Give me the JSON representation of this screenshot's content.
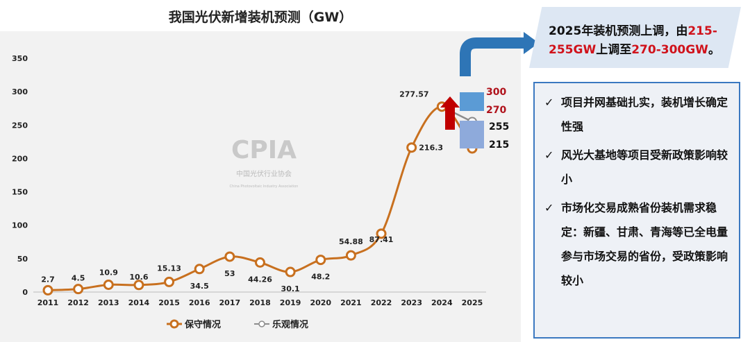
{
  "chart_data": {
    "type": "line",
    "title": "我国光伏新增装机预测（GW）",
    "categories": [
      "2011",
      "2012",
      "2013",
      "2014",
      "2015",
      "2016",
      "2017",
      "2018",
      "2019",
      "2020",
      "2021",
      "2022",
      "2023",
      "2024",
      "2025"
    ],
    "series": [
      {
        "name": "保守情况",
        "color": "#c8701f",
        "values": [
          2.7,
          4.5,
          10.9,
          10.6,
          15.13,
          34.5,
          53,
          44.26,
          30.1,
          48.2,
          54.88,
          87.41,
          216.3,
          277.57,
          215
        ]
      },
      {
        "name": "乐观情况",
        "color": "#8c8c8c",
        "values": [
          null,
          null,
          null,
          null,
          null,
          null,
          null,
          null,
          null,
          null,
          null,
          null,
          null,
          277.57,
          255
        ]
      }
    ],
    "data_labels": [
      "2.7",
      "4.5",
      "10.9",
      "10.6",
      "15.13",
      "34.5",
      "53",
      "44.26",
      "30.1",
      "48.2",
      "54.88",
      "87.41",
      "216.3",
      "277.57"
    ],
    "yticks": [
      "0",
      "50",
      "100",
      "150",
      "200",
      "250",
      "300",
      "350"
    ],
    "ylim": [
      0,
      350
    ],
    "legend_position": "bottom",
    "annotations": {
      "old_range": {
        "low": "215",
        "high": "255",
        "color": "#8eaadb"
      },
      "new_range": {
        "low": "270",
        "high": "300",
        "color": "#5b9bd5"
      },
      "up_arrow_color": "#c00000"
    },
    "watermark": {
      "logo": "CPIA",
      "name": "中国光伏行业协会",
      "english": "China Photovoltaic Industry Association"
    }
  },
  "callout": {
    "p1": "2025年装机预测上调，由",
    "r1": "215-255GW",
    "p2": "上调至",
    "r2": "270-300GW",
    "p3": "。"
  },
  "bullets": [
    {
      "check": "✓",
      "text": "项目并网基础扎实，装机增长确定性强"
    },
    {
      "check": "✓",
      "text": "风光大基地等项目受新政策影响较小"
    },
    {
      "check": "✓",
      "text": "市场化交易成熟省份装机需求稳定：新疆、甘肃、青海等已全电量参与市场交易的省份，受政策影响较小"
    }
  ]
}
